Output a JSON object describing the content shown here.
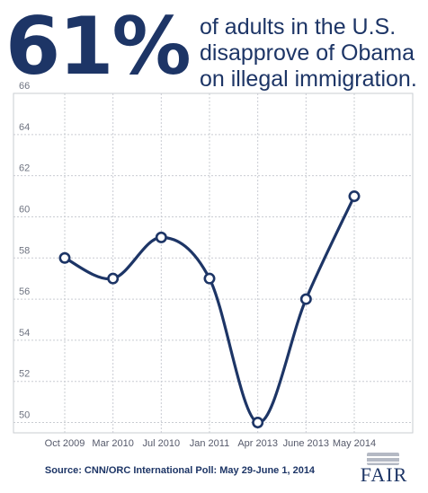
{
  "headline": {
    "number": "61%",
    "lines": [
      "of adults in the U.S.",
      "disapprove of Obama",
      "on illegal immigration."
    ]
  },
  "chart_data": {
    "type": "line",
    "categories": [
      "Oct 2009",
      "Mar 2010",
      "Jul 2010",
      "Jan 2011",
      "Apr 2013",
      "June 2013",
      "May 2014"
    ],
    "values": [
      58,
      57,
      59,
      57,
      50,
      56,
      61
    ],
    "title": "",
    "xlabel": "",
    "ylabel": "",
    "ylim": [
      49.5,
      66
    ],
    "yticks": [
      50,
      52,
      54,
      56,
      58,
      60,
      62,
      64,
      66
    ],
    "grid": true,
    "line_color": "#1d3566",
    "grid_color": "#c9ccd2"
  },
  "source": "Source: CNN/ORC International Poll: May 29-June 1, 2014",
  "logo": {
    "text": "FAIR"
  }
}
